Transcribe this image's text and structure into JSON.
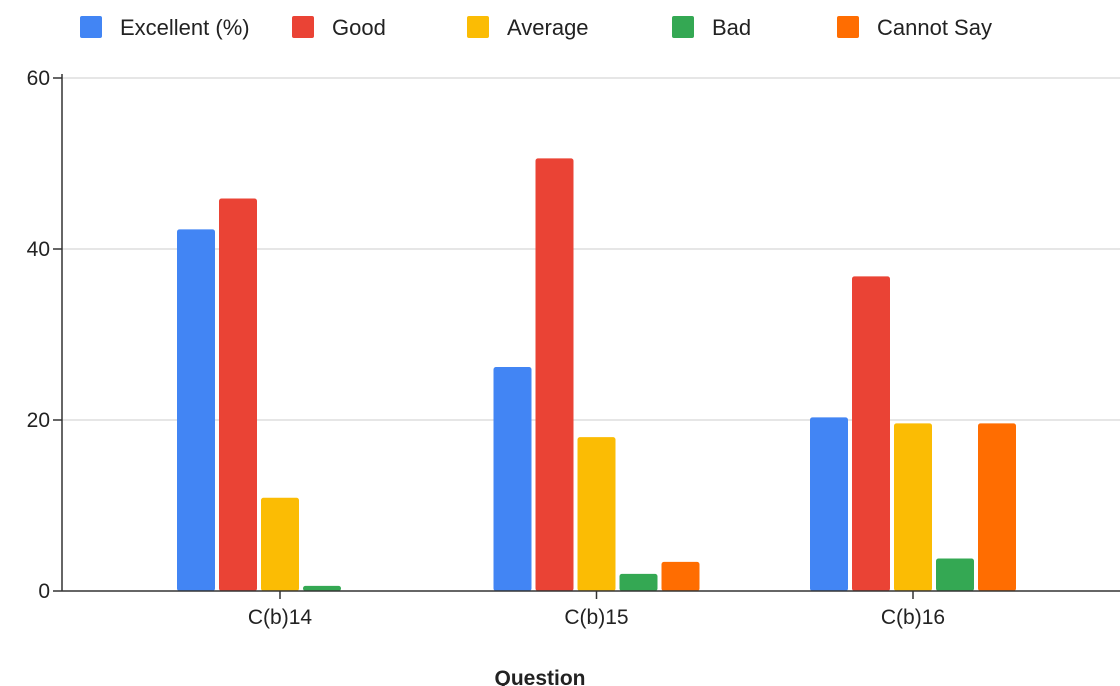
{
  "chart_data": {
    "type": "bar",
    "title": "",
    "xlabel": "Question",
    "ylabel": "",
    "categories": [
      "C(b)14",
      "C(b)15",
      "C(b)16"
    ],
    "ylim": [
      0,
      60
    ],
    "yticks": [
      0,
      20,
      40,
      60
    ],
    "grid": true,
    "legend_position": "top",
    "series": [
      {
        "name": "Excellent (%)",
        "color": "#4285F4",
        "values": [
          42.3,
          26.2,
          20.3
        ]
      },
      {
        "name": "Good",
        "color": "#EA4335",
        "values": [
          45.9,
          50.6,
          36.8
        ]
      },
      {
        "name": "Average",
        "color": "#FBBC04",
        "values": [
          10.9,
          18.0,
          19.6
        ]
      },
      {
        "name": "Bad",
        "color": "#34A853",
        "values": [
          0.6,
          2.0,
          3.8
        ]
      },
      {
        "name": "Cannot Say",
        "color": "#FF6D01",
        "values": [
          0,
          3.4,
          19.6
        ]
      }
    ]
  }
}
